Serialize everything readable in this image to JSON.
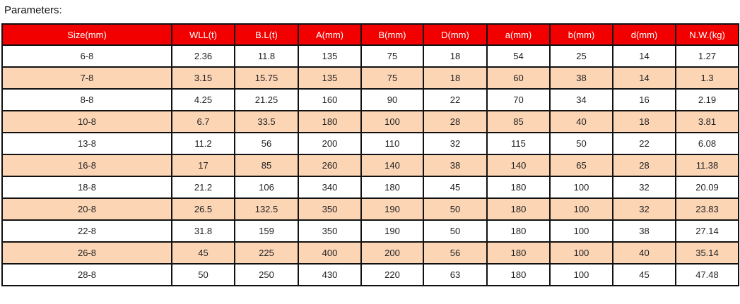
{
  "title": "Parameters:",
  "colors": {
    "header_bg": "#f20000",
    "alt_row_bg": "#fcd5b5"
  },
  "columns": [
    "Size(mm)",
    "WLL(t)",
    "B.L(t)",
    "A(mm)",
    "B(mm)",
    "D(mm)",
    "a(mm)",
    "b(mm)",
    "d(mm)",
    "N.W.(kg)"
  ],
  "rows": [
    [
      "6-8",
      "2.36",
      "11.8",
      "135",
      "75",
      "18",
      "54",
      "25",
      "14",
      "1.27"
    ],
    [
      "7-8",
      "3.15",
      "15.75",
      "135",
      "75",
      "18",
      "60",
      "38",
      "14",
      "1.3"
    ],
    [
      "8-8",
      "4.25",
      "21.25",
      "160",
      "90",
      "22",
      "70",
      "34",
      "16",
      "2.19"
    ],
    [
      "10-8",
      "6.7",
      "33.5",
      "180",
      "100",
      "28",
      "85",
      "40",
      "18",
      "3.81"
    ],
    [
      "13-8",
      "11.2",
      "56",
      "200",
      "110",
      "32",
      "115",
      "50",
      "22",
      "6.08"
    ],
    [
      "16-8",
      "17",
      "85",
      "260",
      "140",
      "38",
      "140",
      "65",
      "28",
      "11.38"
    ],
    [
      "18-8",
      "21.2",
      "106",
      "340",
      "180",
      "45",
      "180",
      "100",
      "32",
      "20.09"
    ],
    [
      "20-8",
      "26.5",
      "132.5",
      "350",
      "190",
      "50",
      "180",
      "100",
      "32",
      "23.83"
    ],
    [
      "22-8",
      "31.8",
      "159",
      "350",
      "190",
      "50",
      "180",
      "100",
      "38",
      "27.14"
    ],
    [
      "26-8",
      "45",
      "225",
      "400",
      "200",
      "56",
      "180",
      "100",
      "40",
      "35.14"
    ],
    [
      "28-8",
      "50",
      "250",
      "430",
      "220",
      "63",
      "180",
      "100",
      "45",
      "47.48"
    ]
  ]
}
